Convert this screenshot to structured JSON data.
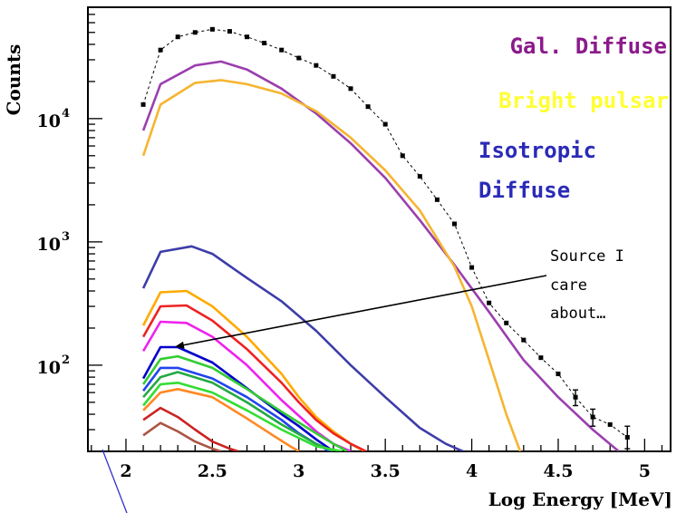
{
  "chart_data": {
    "type": "line",
    "xlabel": "Log Energy [MeV]",
    "ylabel": "Counts",
    "xlim": [
      1.78,
      5.15
    ],
    "ylim": [
      20,
      80000
    ],
    "y_scale": "log",
    "x_ticks": [
      2,
      2.5,
      3,
      3.5,
      4,
      4.5,
      5
    ],
    "x_tick_labels": [
      "2",
      "2.5",
      "3",
      "3.5",
      "4",
      "4.5",
      "5"
    ],
    "y_ticks": [
      {
        "value": 10000,
        "base": "10",
        "exp": "4"
      },
      {
        "value": 1000,
        "base": "10",
        "exp": "3"
      },
      {
        "value": 100,
        "base": "10",
        "exp": "2"
      }
    ],
    "grid": false,
    "annotations": [
      {
        "text": "Gal. Diffuse",
        "color": "#8b1a8b"
      },
      {
        "text": "Bright pulsar",
        "color": "#ffff33"
      },
      {
        "text": "Isotropic",
        "color": "#2a2ab8"
      },
      {
        "text": "Diffuse",
        "color": "#2a2ab8"
      }
    ],
    "note_lines": [
      "Source I",
      "care",
      "about…"
    ],
    "data_points": {
      "x": [
        2.1,
        2.2,
        2.3,
        2.4,
        2.5,
        2.6,
        2.7,
        2.8,
        2.9,
        3.0,
        3.1,
        3.2,
        3.3,
        3.4,
        3.5,
        3.6,
        3.7,
        3.8,
        3.9,
        4.0,
        4.1,
        4.2,
        4.3,
        4.4,
        4.5,
        4.6,
        4.7,
        4.8,
        4.9
      ],
      "y": [
        13000,
        36000,
        46000,
        50000,
        53000,
        51000,
        46000,
        41000,
        36000,
        31000,
        27000,
        22000,
        17500,
        12500,
        9000,
        5000,
        3400,
        2200,
        1400,
        620,
        320,
        220,
        160,
        115,
        85,
        55,
        38,
        33,
        26
      ],
      "err_low": [
        0,
        0,
        0,
        0,
        0,
        0,
        0,
        0,
        0,
        0,
        0,
        0,
        0,
        0,
        0,
        0,
        0,
        0,
        0,
        0,
        0,
        0,
        0,
        0,
        0,
        8,
        6,
        0,
        5
      ],
      "err_high": [
        0,
        0,
        0,
        0,
        0,
        0,
        0,
        0,
        0,
        0,
        0,
        0,
        0,
        0,
        0,
        0,
        0,
        0,
        0,
        0,
        0,
        0,
        0,
        0,
        0,
        8,
        6,
        0,
        6
      ]
    },
    "series": [
      {
        "color": "#9a3fae",
        "x": [
          2.1,
          2.2,
          2.4,
          2.55,
          2.7,
          2.9,
          3.1,
          3.3,
          3.5,
          3.7,
          3.9,
          4.1,
          4.3,
          4.5,
          4.7,
          4.85
        ],
        "y": [
          8000,
          19000,
          27000,
          29000,
          25000,
          17500,
          11000,
          6300,
          3300,
          1500,
          650,
          270,
          110,
          55,
          30,
          20
        ]
      },
      {
        "color": "#f5b531",
        "x": [
          2.1,
          2.2,
          2.4,
          2.55,
          2.7,
          2.9,
          3.1,
          3.3,
          3.5,
          3.7,
          3.9,
          4.0,
          4.1,
          4.2,
          4.28
        ],
        "y": [
          5000,
          13000,
          19500,
          20500,
          19000,
          16000,
          11500,
          7000,
          3800,
          1800,
          630,
          300,
          110,
          40,
          20
        ]
      },
      {
        "color": "#3d3da8",
        "x": [
          2.1,
          2.2,
          2.38,
          2.5,
          2.7,
          2.9,
          3.1,
          3.3,
          3.5,
          3.7,
          3.85,
          3.95
        ],
        "y": [
          420,
          830,
          920,
          800,
          510,
          330,
          190,
          100,
          55,
          31,
          23,
          20
        ]
      },
      {
        "color": "#ffaa00",
        "x": [
          2.1,
          2.2,
          2.35,
          2.5,
          2.7,
          2.9,
          3.0,
          3.1,
          3.2,
          3.3,
          3.38
        ],
        "y": [
          210,
          390,
          400,
          300,
          170,
          85,
          55,
          38,
          29,
          23,
          20
        ]
      },
      {
        "color": "#ee2222",
        "x": [
          2.1,
          2.2,
          2.35,
          2.5,
          2.7,
          2.9,
          3.0,
          3.1,
          3.2,
          3.3,
          3.39
        ],
        "y": [
          170,
          300,
          305,
          230,
          135,
          72,
          50,
          36,
          28,
          23,
          20
        ]
      },
      {
        "color": "#ee22ee",
        "x": [
          2.1,
          2.2,
          2.35,
          2.5,
          2.7,
          2.9,
          3.1,
          3.2,
          3.3
        ],
        "y": [
          130,
          225,
          220,
          170,
          100,
          52,
          29,
          23,
          20
        ]
      },
      {
        "color": "#0000cc",
        "x": [
          2.1,
          2.2,
          2.3,
          2.5,
          2.7,
          2.9,
          3.0,
          3.1,
          3.2
        ],
        "y": [
          78,
          140,
          140,
          105,
          65,
          40,
          32,
          25,
          20
        ]
      },
      {
        "color": "#33cc33",
        "x": [
          2.1,
          2.2,
          2.3,
          2.5,
          2.7,
          2.9,
          3.1,
          3.2,
          3.28
        ],
        "y": [
          70,
          112,
          118,
          95,
          64,
          42,
          28,
          23,
          20
        ]
      },
      {
        "color": "#2244ee",
        "x": [
          2.1,
          2.2,
          2.3,
          2.5,
          2.7,
          2.9,
          3.0,
          3.1,
          3.18
        ],
        "y": [
          62,
          95,
          95,
          78,
          55,
          36,
          28,
          23,
          20
        ]
      },
      {
        "color": "#22aa44",
        "x": [
          2.1,
          2.2,
          2.3,
          2.5,
          2.7,
          2.9,
          3.1,
          3.2
        ],
        "y": [
          55,
          80,
          88,
          72,
          50,
          33,
          23,
          20
        ]
      },
      {
        "color": "#33dd33",
        "x": [
          2.1,
          2.2,
          2.3,
          2.5,
          2.7,
          2.9,
          3.1,
          3.25
        ],
        "y": [
          47,
          70,
          72,
          60,
          43,
          30,
          22,
          20
        ]
      },
      {
        "color": "#ff8822",
        "x": [
          2.1,
          2.2,
          2.3,
          2.5,
          2.7,
          2.85,
          2.95,
          3.0
        ],
        "y": [
          43,
          60,
          64,
          55,
          37,
          27,
          22,
          20
        ]
      },
      {
        "color": "#cc2222",
        "x": [
          2.1,
          2.2,
          2.3,
          2.4,
          2.5,
          2.6,
          2.65
        ],
        "y": [
          36,
          45,
          38,
          30,
          24,
          21,
          20
        ]
      },
      {
        "color": "#aa5544",
        "x": [
          2.1,
          2.2,
          2.3,
          2.4,
          2.5,
          2.55
        ],
        "y": [
          27,
          34,
          29,
          24,
          21,
          20
        ]
      }
    ]
  }
}
